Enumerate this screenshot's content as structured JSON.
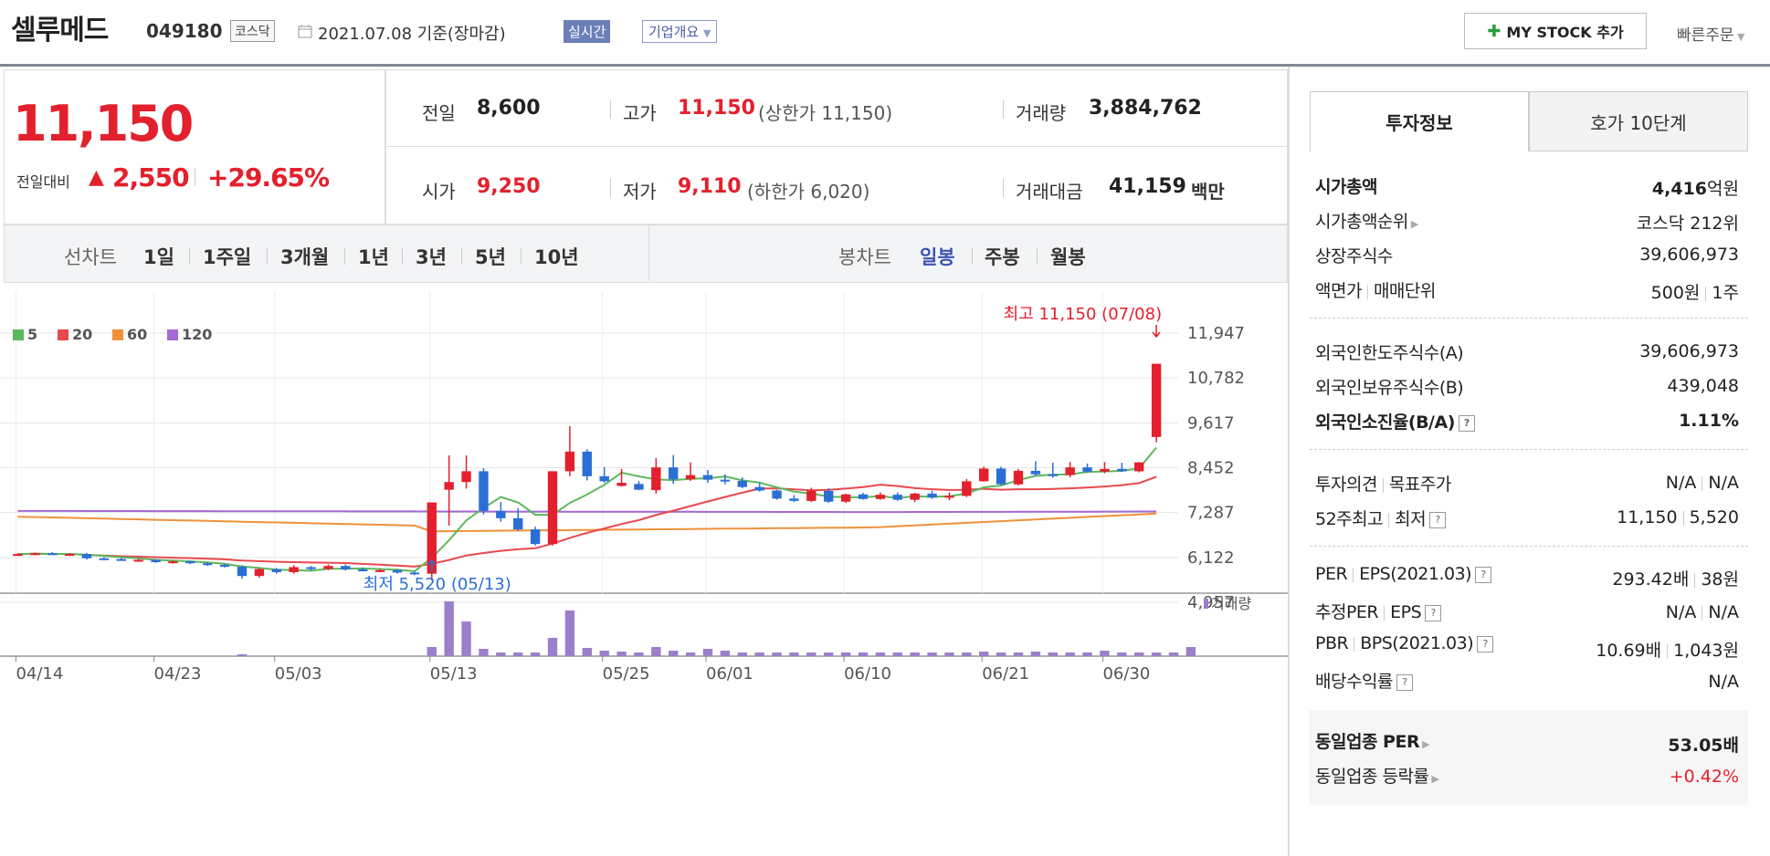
{
  "header": {
    "name": "셀루메드",
    "code": "049180",
    "market": "코스닥",
    "date": "2021.07.08  기준(장마감)",
    "realtime": "실시간",
    "company_info": "기업개요",
    "mystock_btn": "MY STOCK 추가",
    "quick_order": "빠른주문"
  },
  "price": {
    "current": "11,150",
    "change_label": "전일대비",
    "change": "2,550",
    "change_pct": "+29.65%"
  },
  "quote": {
    "prev_label": "전일",
    "prev": "8,600",
    "high_label": "고가",
    "high": "11,150",
    "upper_limit": "(상한가 11,150)",
    "volume_label": "거래량",
    "volume": "3,884,762",
    "open_label": "시가",
    "open": "9,250",
    "low_label": "저가",
    "low": "9,110",
    "lower_limit": "(하한가 6,020)",
    "value_label": "거래대금",
    "value": "41,159",
    "value_unit": "백만"
  },
  "periods": {
    "line_label": "선차트",
    "line_tabs": [
      "1일",
      "1주일",
      "3개월",
      "1년",
      "3년",
      "5년",
      "10년"
    ],
    "candle_label": "봉차트",
    "candle_tabs": [
      "일봉",
      "주봉",
      "월봉"
    ],
    "active_candle": "일봉"
  },
  "chart_data": {
    "type": "candlestick",
    "legend": [
      {
        "name": "5",
        "color": "#5cb85c"
      },
      {
        "name": "20",
        "color": "#e8494d"
      },
      {
        "name": "60",
        "color": "#f0913a"
      },
      {
        "name": "120",
        "color": "#a46ad1"
      }
    ],
    "y_ticks": [
      11947,
      10782,
      9617,
      8452,
      7287,
      6122,
      4957
    ],
    "y_tick_labels": [
      "11,947",
      "10,782",
      "9,617",
      "8,452",
      "7,287",
      "6,122",
      "4,957"
    ],
    "x_ticks": [
      "04/14",
      "04/23",
      "05/03",
      "05/13",
      "05/25",
      "06/01",
      "06/10",
      "06/21",
      "06/30"
    ],
    "high_annotation": "최고 11,150 (07/08)",
    "low_annotation": "최저 5,520 (05/13)",
    "volume_label": "거래량",
    "candles": [
      [
        6200,
        6230,
        6160,
        6210
      ],
      [
        6210,
        6250,
        6180,
        6230
      ],
      [
        6230,
        6260,
        6190,
        6200
      ],
      [
        6200,
        6230,
        6170,
        6210
      ],
      [
        6210,
        6240,
        6070,
        6100
      ],
      [
        6100,
        6130,
        6060,
        6080
      ],
      [
        6080,
        6110,
        6040,
        6050
      ],
      [
        6050,
        6090,
        6010,
        6060
      ],
      [
        6060,
        6080,
        5980,
        6000
      ],
      [
        6000,
        6040,
        5960,
        6020
      ],
      [
        6020,
        6040,
        5950,
        5970
      ],
      [
        5970,
        6000,
        5900,
        5930
      ],
      [
        5930,
        5960,
        5860,
        5880
      ],
      [
        5880,
        5920,
        5570,
        5640
      ],
      [
        5640,
        5850,
        5600,
        5820
      ],
      [
        5820,
        5850,
        5700,
        5740
      ],
      [
        5740,
        5920,
        5700,
        5870
      ],
      [
        5870,
        5900,
        5780,
        5820
      ],
      [
        5820,
        5940,
        5790,
        5900
      ],
      [
        5900,
        5940,
        5780,
        5810
      ],
      [
        5810,
        5860,
        5760,
        5780
      ],
      [
        5780,
        5830,
        5740,
        5790
      ],
      [
        5790,
        5820,
        5700,
        5730
      ],
      [
        5730,
        5760,
        5660,
        5700
      ],
      [
        5700,
        7550,
        5520,
        7550
      ],
      [
        7880,
        8770,
        6950,
        8080
      ],
      [
        8080,
        8770,
        7910,
        8360
      ],
      [
        8360,
        8440,
        7240,
        7330
      ],
      [
        7330,
        7560,
        7050,
        7140
      ],
      [
        7140,
        7400,
        6810,
        6850
      ],
      [
        6850,
        6920,
        6430,
        6470
      ],
      [
        6470,
        8360,
        6430,
        8360
      ],
      [
        8360,
        9530,
        8230,
        8870
      ],
      [
        8870,
        8930,
        8120,
        8230
      ],
      [
        8230,
        8470,
        8060,
        8100
      ],
      [
        7980,
        8420,
        7960,
        8060
      ],
      [
        8030,
        8100,
        7870,
        7880
      ],
      [
        7870,
        8700,
        7780,
        8460
      ],
      [
        8460,
        8780,
        8030,
        8150
      ],
      [
        8150,
        8590,
        8110,
        8260
      ],
      [
        8260,
        8390,
        8060,
        8140
      ],
      [
        8140,
        8280,
        8020,
        8110
      ],
      [
        8110,
        8200,
        7920,
        7950
      ],
      [
        7950,
        8060,
        7830,
        7860
      ],
      [
        7860,
        7880,
        7620,
        7650
      ],
      [
        7650,
        7740,
        7560,
        7590
      ],
      [
        7590,
        7930,
        7560,
        7850
      ],
      [
        7850,
        7920,
        7540,
        7570
      ],
      [
        7570,
        7780,
        7540,
        7760
      ],
      [
        7760,
        7800,
        7620,
        7640
      ],
      [
        7640,
        7810,
        7620,
        7750
      ],
      [
        7750,
        7810,
        7590,
        7620
      ],
      [
        7620,
        7800,
        7560,
        7780
      ],
      [
        7780,
        7850,
        7640,
        7680
      ],
      [
        7680,
        7810,
        7610,
        7720
      ],
      [
        7720,
        8160,
        7690,
        8100
      ],
      [
        8100,
        8480,
        8090,
        8430
      ],
      [
        8430,
        8480,
        8000,
        8020
      ],
      [
        8020,
        8420,
        7990,
        8370
      ],
      [
        8370,
        8620,
        8230,
        8280
      ],
      [
        8280,
        8580,
        8190,
        8260
      ],
      [
        8260,
        8600,
        8200,
        8460
      ],
      [
        8460,
        8560,
        8320,
        8350
      ],
      [
        8350,
        8600,
        8310,
        8420
      ],
      [
        8420,
        8580,
        8340,
        8360
      ],
      [
        8360,
        8600,
        8330,
        8590
      ],
      [
        9250,
        11150,
        9110,
        11150
      ]
    ],
    "volume": [
      0,
      0,
      0,
      0,
      0,
      0,
      0,
      0,
      0,
      0,
      0,
      0,
      0,
      2,
      0,
      0,
      0,
      0,
      0,
      0,
      0,
      0,
      0,
      0,
      10,
      60,
      38,
      8,
      4,
      4,
      4,
      20,
      50,
      9,
      6,
      5,
      4,
      10,
      6,
      4,
      8,
      6,
      4,
      4,
      4,
      4,
      4,
      4,
      4,
      4,
      4,
      4,
      4,
      4,
      4,
      4,
      5,
      4,
      4,
      5,
      4,
      4,
      4,
      6,
      4,
      4,
      4,
      4,
      10
    ]
  },
  "invest": {
    "tab_info": "투자정보",
    "tab_order": "호가 10단계",
    "market_cap_label": "시가총액",
    "market_cap": "4,416",
    "market_cap_unit": "억원",
    "rank_label": "시가총액순위",
    "rank": "코스닥 212위",
    "shares_label": "상장주식수",
    "shares": "39,606,973",
    "par_label": "액면가",
    "unit_label": "매매단위",
    "par": "500원",
    "unit": "1주",
    "foreign_limit_label": "외국인한도주식수(A)",
    "foreign_limit": "39,606,973",
    "foreign_hold_label": "외국인보유주식수(B)",
    "foreign_hold": "439,048",
    "foreign_ratio_label": "외국인소진율(B/A)",
    "foreign_ratio": "1.11%",
    "opinion_label": "투자의견",
    "target_label": "목표주가",
    "opinion": "N/A",
    "target": "N/A",
    "w52_label": "52주최고",
    "w52_low_label": "최저",
    "w52_high": "11,150",
    "w52_low": "5,520",
    "per_label": "PER",
    "eps_label": "EPS(2021.03)",
    "per": "293.42배",
    "eps": "38원",
    "est_per_label": "추정PER",
    "est_eps_label": "EPS",
    "est_per": "N/A",
    "est_eps": "N/A",
    "pbr_label": "PBR",
    "bps_label": "BPS(2021.03)",
    "pbr": "10.69배",
    "bps": "1,043원",
    "div_label": "배당수익률",
    "div": "N/A",
    "sector_per_label": "동일업종 PER",
    "sector_per": "53.05배",
    "sector_chg_label": "동일업종 등락률",
    "sector_chg": "+0.42%"
  }
}
